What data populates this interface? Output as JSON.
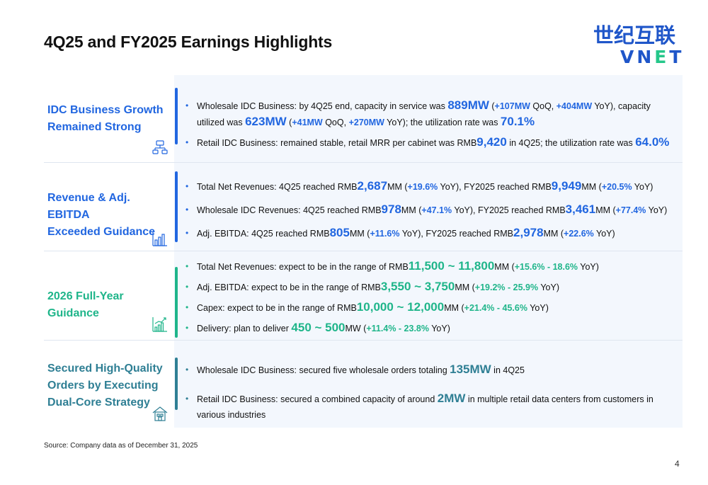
{
  "title": "4Q25 and FY2025 Earnings Highlights",
  "logo": {
    "cn": "世纪互联",
    "en_a": "VN",
    "en_b": "E",
    "en_c": "T"
  },
  "sections": [
    {
      "label_lines": [
        "IDC Business Growth",
        "Remained Strong"
      ],
      "icon": "network-icon",
      "color": "#2166e0",
      "bullets": [
        {
          "parts": [
            {
              "t": "Wholesale IDC Business: by 4Q25 end, capacity in service was "
            },
            {
              "t": "889MW",
              "s": "hl"
            },
            {
              "t": " ("
            },
            {
              "t": "+107MW",
              "s": "hs"
            },
            {
              "t": " QoQ, "
            },
            {
              "t": "+404MW",
              "s": "hs"
            },
            {
              "t": " YoY), capacity utilized was "
            },
            {
              "t": "623MW",
              "s": "hl"
            },
            {
              "t": " ("
            },
            {
              "t": "+41MW",
              "s": "hs"
            },
            {
              "t": " QoQ, "
            },
            {
              "t": "+270MW",
              "s": "hs"
            },
            {
              "t": " YoY); the utilization rate was "
            },
            {
              "t": "70.1%",
              "s": "hl"
            }
          ]
        },
        {
          "parts": [
            {
              "t": "Retail IDC Business: remained stable, retail MRR per cabinet was RMB"
            },
            {
              "t": "9,420",
              "s": "hl"
            },
            {
              "t": " in 4Q25; the utilization rate was "
            },
            {
              "t": "64.0%",
              "s": "hl"
            }
          ]
        }
      ]
    },
    {
      "label_lines": [
        "Revenue & Adj. EBITDA",
        "Exceeded Guidance"
      ],
      "icon": "bar-chart-icon",
      "color": "#2166e0",
      "bullets": [
        {
          "parts": [
            {
              "t": "Total Net Revenues: 4Q25 reached RMB"
            },
            {
              "t": "2,687",
              "s": "hl"
            },
            {
              "t": "MM ("
            },
            {
              "t": "+19.6%",
              "s": "hs"
            },
            {
              "t": " YoY), FY2025 reached RMB"
            },
            {
              "t": "9,949",
              "s": "hl"
            },
            {
              "t": "MM ("
            },
            {
              "t": "+20.5%",
              "s": "hs"
            },
            {
              "t": " YoY)"
            }
          ]
        },
        {
          "parts": [
            {
              "t": "Wholesale IDC Revenues: 4Q25 reached RMB"
            },
            {
              "t": "978",
              "s": "hl"
            },
            {
              "t": "MM ("
            },
            {
              "t": "+47.1%",
              "s": "hs"
            },
            {
              "t": " YoY), FY2025 reached RMB"
            },
            {
              "t": "3,461",
              "s": "hl"
            },
            {
              "t": "MM ("
            },
            {
              "t": "+77.4%",
              "s": "hs"
            },
            {
              "t": " YoY)"
            }
          ]
        },
        {
          "parts": [
            {
              "t": "Adj. EBITDA: 4Q25 reached RMB"
            },
            {
              "t": "805",
              "s": "hl"
            },
            {
              "t": "MM ("
            },
            {
              "t": "+11.6%",
              "s": "hs"
            },
            {
              "t": " YoY), FY2025 reached RMB"
            },
            {
              "t": "2,978",
              "s": "hl"
            },
            {
              "t": "MM ("
            },
            {
              "t": "+22.6%",
              "s": "hs"
            },
            {
              "t": " YoY)"
            }
          ]
        }
      ]
    },
    {
      "label_lines": [
        "2026 Full-Year Guidance"
      ],
      "icon": "growth-chart-icon",
      "color": "#1fb58a",
      "bullets": [
        {
          "parts": [
            {
              "t": "Total Net Revenues: expect to be in the range of RMB"
            },
            {
              "t": "11,500 ~ 11,800",
              "s": "hl"
            },
            {
              "t": "MM ("
            },
            {
              "t": "+15.6% - 18.6%",
              "s": "hs"
            },
            {
              "t": " YoY)"
            }
          ]
        },
        {
          "parts": [
            {
              "t": "Adj. EBITDA: expect to be in the range of RMB"
            },
            {
              "t": "3,550 ~ 3,750",
              "s": "hl"
            },
            {
              "t": "MM ("
            },
            {
              "t": "+19.2% - 25.9%",
              "s": "hs"
            },
            {
              "t": " YoY)"
            }
          ]
        },
        {
          "parts": [
            {
              "t": "Capex: expect to be in the range of RMB"
            },
            {
              "t": "10,000 ~ 12,000",
              "s": "hl"
            },
            {
              "t": "MM ("
            },
            {
              "t": "+21.4% - 45.6%",
              "s": "hs"
            },
            {
              "t": " YoY)"
            }
          ]
        },
        {
          "parts": [
            {
              "t": "Delivery: plan to deliver "
            },
            {
              "t": "450 ~ 500",
              "s": "hl"
            },
            {
              "t": "MW ("
            },
            {
              "t": "+11.4% - 23.8%",
              "s": "hs"
            },
            {
              "t": " YoY)"
            }
          ]
        }
      ]
    },
    {
      "label_lines": [
        "Secured High-Quality",
        "Orders by Executing",
        "Dual-Core Strategy"
      ],
      "icon": "building-icon",
      "color": "#2f7f94",
      "bullets": [
        {
          "parts": [
            {
              "t": "Wholesale IDC Business: secured five wholesale orders totaling "
            },
            {
              "t": "135MW",
              "s": "hl"
            },
            {
              "t": " in 4Q25"
            }
          ]
        },
        {
          "parts": [
            {
              "t": "Retail IDC Business: secured a combined capacity of around "
            },
            {
              "t": "2MW",
              "s": "hl"
            },
            {
              "t": " in multiple retail data centers from customers in various industries"
            }
          ]
        }
      ]
    }
  ],
  "source": "Source: Company data as of December 31, 2025",
  "page_number": "4"
}
